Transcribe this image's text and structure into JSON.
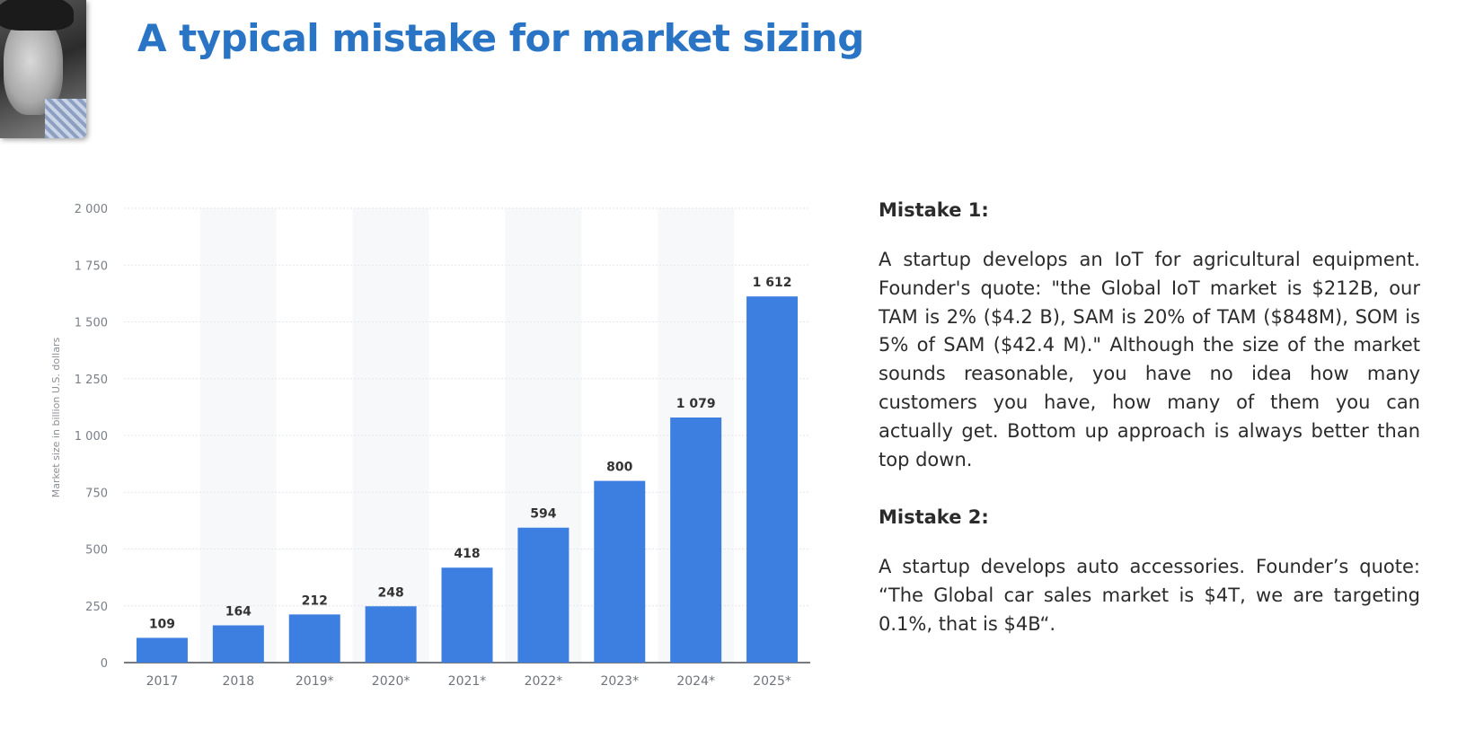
{
  "slide": {
    "title": "A typical mistake for market sizing"
  },
  "webcam": {
    "icon": "presenter-webcam"
  },
  "mistakes": [
    {
      "heading": "Mistake 1:",
      "text": "A startup develops an IoT for agricultural equipment. Founder's quote: \"the Global IoT market is $212B, our TAM is 2% ($4.2 B), SAM is 20% of TAM ($848M), SOM is 5% of SAM ($42.4 M).\" Although the size of the market sounds reasonable, you have no idea how many customers you have, how many of them you can actually get. Bottom up approach is always better than top down."
    },
    {
      "heading": "Mistake 2:",
      "text": "A startup develops auto accessories. Founder’s quote: “The Global car sales market is $4T, we are targeting 0.1%, that is $4B“."
    }
  ],
  "chart_data": {
    "type": "bar",
    "title": "",
    "xlabel": "",
    "ylabel": "Market size in billion U.S. dollars",
    "categories": [
      "2017",
      "2018",
      "2019*",
      "2020*",
      "2021*",
      "2022*",
      "2023*",
      "2024*",
      "2025*"
    ],
    "values": [
      109,
      164,
      212,
      248,
      418,
      594,
      800,
      1079,
      1612
    ],
    "value_labels": [
      "109",
      "164",
      "212",
      "248",
      "418",
      "594",
      "800",
      "1 079",
      "1 612"
    ],
    "ylim": [
      0,
      2000
    ],
    "yticks": [
      0,
      250,
      500,
      750,
      1000,
      1250,
      1500,
      1750,
      2000
    ],
    "ytick_labels": [
      "0",
      "250",
      "500",
      "750",
      "1 000",
      "1 250",
      "1 500",
      "1 750",
      "2 000"
    ],
    "bar_color": "#3d7fe0",
    "grid": true,
    "legend": "none"
  }
}
